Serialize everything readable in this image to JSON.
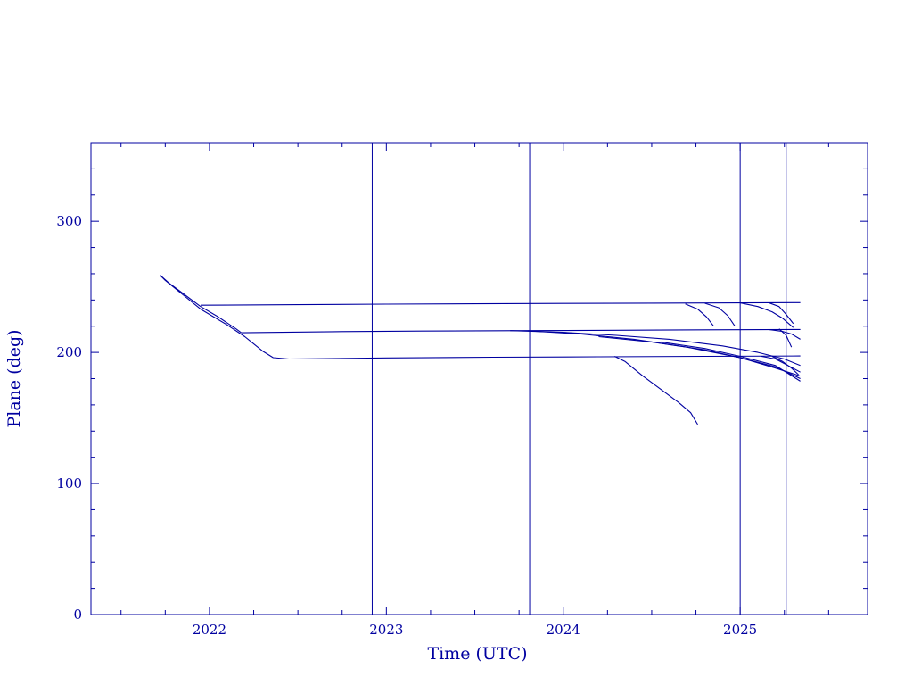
{
  "chart_data": {
    "type": "line",
    "title": "",
    "xlabel": "Time (UTC)",
    "ylabel": "Plane (deg)",
    "xlim": [
      2021.33,
      2025.72
    ],
    "ylim": [
      0,
      360
    ],
    "xticks": [
      2022,
      2023,
      2024,
      2025
    ],
    "xtick_labels": [
      "2022",
      "2023",
      "2024",
      "2025"
    ],
    "x_minor_step": 0.25,
    "yticks": [
      0,
      100,
      200,
      300
    ],
    "ytick_labels": [
      "0",
      "100",
      "200",
      "300"
    ],
    "y_minor_step": 20,
    "grid": false,
    "legend": "none",
    "color": "#0000a0",
    "vertical_lines": [
      2022.92,
      2023.81,
      2025.0,
      2025.26
    ],
    "series": [
      {
        "x": [
          2021.72,
          2021.77,
          2021.85,
          2021.95,
          2022.05,
          2022.15,
          2022.18
        ],
        "y": [
          259,
          253,
          245,
          235,
          227,
          218,
          215
        ]
      },
      {
        "x": [
          2021.72,
          2021.75,
          2021.85,
          2021.95,
          2022.1,
          2022.2,
          2022.3,
          2022.36,
          2022.45
        ],
        "y": [
          259,
          255,
          244,
          233,
          221,
          212,
          201,
          196,
          195
        ]
      },
      {
        "x": [
          2021.95,
          2022.5,
          2023.0,
          2023.5,
          2024.0,
          2024.5,
          2025.0,
          2025.34
        ],
        "y": [
          236,
          236.4,
          236.8,
          237.1,
          237.4,
          237.6,
          237.8,
          238
        ]
      },
      {
        "x": [
          2022.18,
          2022.7,
          2023.2,
          2023.8,
          2024.3,
          2024.8,
          2025.34
        ],
        "y": [
          215,
          215.8,
          216.3,
          216.6,
          216.9,
          217.2,
          217.5
        ]
      },
      {
        "x": [
          2022.45,
          2023.0,
          2023.6,
          2024.2,
          2024.8,
          2025.34
        ],
        "y": [
          195,
          195.8,
          196.3,
          196.7,
          197.0,
          197.3
        ]
      },
      {
        "x": [
          2024.69,
          2024.76,
          2024.81,
          2024.85
        ],
        "y": [
          237,
          233,
          227,
          220
        ]
      },
      {
        "x": [
          2024.8,
          2024.88,
          2024.93,
          2024.97
        ],
        "y": [
          237.5,
          234,
          228,
          220
        ]
      },
      {
        "x": [
          2025.0,
          2025.1,
          2025.18,
          2025.24,
          2025.3
        ],
        "y": [
          237.8,
          235,
          231,
          226,
          219
        ]
      },
      {
        "x": [
          2025.16,
          2025.22,
          2025.26,
          2025.3
        ],
        "y": [
          238,
          235,
          229,
          222
        ]
      },
      {
        "x": [
          2025.22,
          2025.26,
          2025.29
        ],
        "y": [
          218,
          213,
          204
        ]
      },
      {
        "x": [
          2025.16,
          2025.24,
          2025.29,
          2025.34
        ],
        "y": [
          217.5,
          216,
          214,
          210
        ]
      },
      {
        "x": [
          2023.7,
          2024.0,
          2024.3,
          2024.6,
          2024.9,
          2025.1,
          2025.25,
          2025.34
        ],
        "y": [
          216.6,
          215.3,
          213,
          210,
          205,
          200,
          195,
          190
        ]
      },
      {
        "x": [
          2023.8,
          2024.1,
          2024.4,
          2024.7,
          2025.0,
          2025.2,
          2025.34
        ],
        "y": [
          216.5,
          214,
          210,
          204,
          196,
          188,
          182
        ]
      },
      {
        "x": [
          2024.2,
          2024.5,
          2024.8,
          2025.0,
          2025.2,
          2025.34
        ],
        "y": [
          212,
          208,
          202,
          196,
          189,
          180
        ]
      },
      {
        "x": [
          2024.55,
          2024.8,
          2025.0,
          2025.2,
          2025.34
        ],
        "y": [
          208,
          203,
          197,
          190,
          178
        ]
      },
      {
        "x": [
          2025.12,
          2025.2,
          2025.27,
          2025.34
        ],
        "y": [
          197,
          195,
          190,
          185
        ]
      },
      {
        "x": [
          2025.18,
          2025.24,
          2025.29,
          2025.33
        ],
        "y": [
          197,
          193,
          188,
          183
        ]
      },
      {
        "x": [
          2024.29,
          2024.35,
          2024.45,
          2024.55,
          2024.65,
          2024.72,
          2024.76
        ],
        "y": [
          197,
          193,
          182,
          172,
          162,
          154,
          145
        ]
      }
    ]
  }
}
